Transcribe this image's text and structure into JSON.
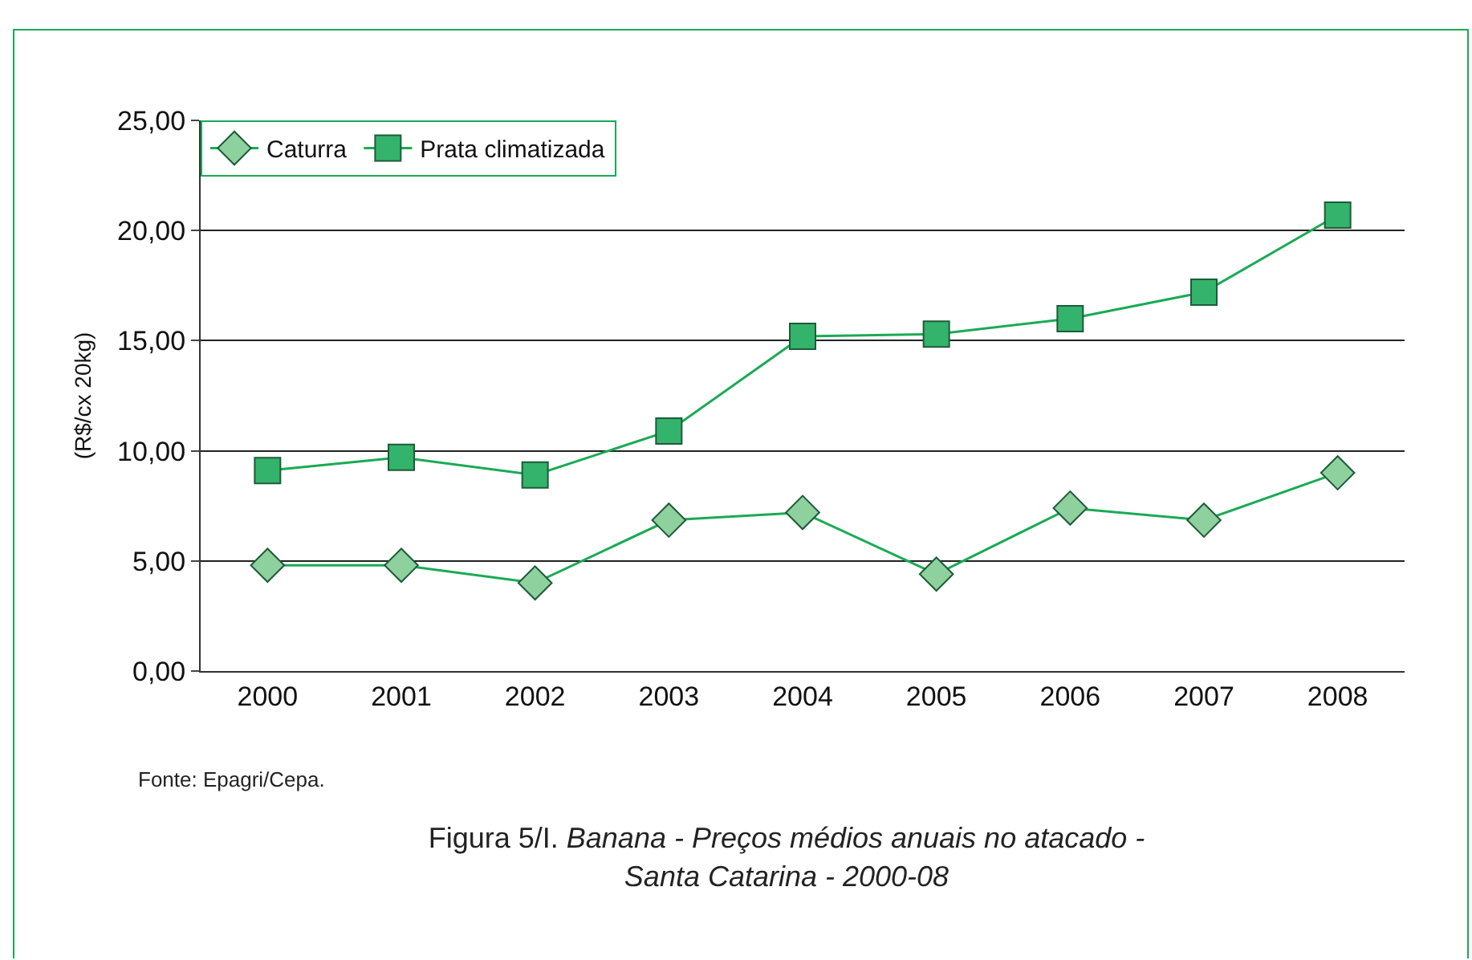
{
  "chart_data": {
    "type": "line",
    "ylabel": "(R$/cx 20kg)",
    "categories": [
      "2000",
      "2001",
      "2002",
      "2003",
      "2004",
      "2005",
      "2006",
      "2007",
      "2008"
    ],
    "series": [
      {
        "name": "Caturra",
        "color": "#8fd19e",
        "marker": "diamond",
        "values": [
          4.8,
          4.8,
          4.0,
          6.85,
          7.2,
          4.4,
          7.4,
          6.85,
          9.0
        ]
      },
      {
        "name": "Prata climatizada",
        "color": "#33b36b",
        "marker": "square",
        "values": [
          9.1,
          9.7,
          8.9,
          10.9,
          15.2,
          15.3,
          16.0,
          17.2,
          20.7
        ]
      }
    ],
    "ylim": [
      0,
      25
    ],
    "yticks": [
      {
        "value": 0,
        "label": "0,00"
      },
      {
        "value": 5,
        "label": "5,00"
      },
      {
        "value": 10,
        "label": "10,00"
      },
      {
        "value": 15,
        "label": "15,00"
      },
      {
        "value": 20,
        "label": "20,00"
      },
      {
        "value": 25,
        "label": "25,00"
      }
    ],
    "grid": "y",
    "legend": "top left",
    "line_style": "solid",
    "annotations": [
      "Fonte: Epagri/Cepa.",
      "Figura 5/I.",
      "Banana - Preços médios anuais no atacado -  Santa Catarina - 2000-08"
    ]
  }
}
